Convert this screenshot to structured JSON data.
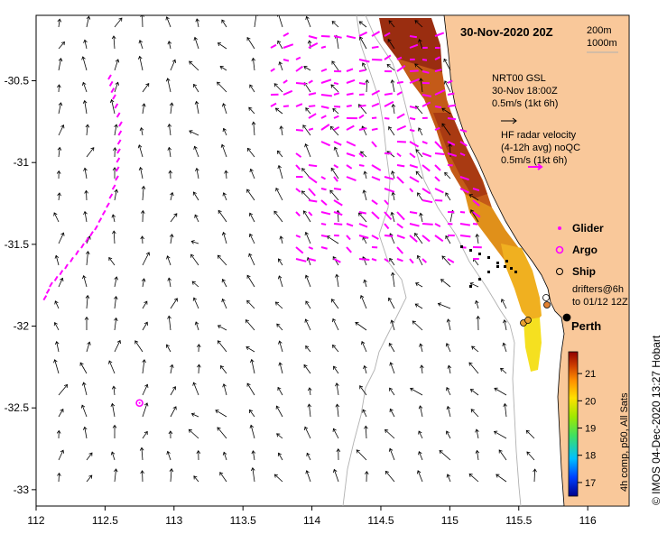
{
  "title": "30-Nov-2020 20Z",
  "contours": {
    "label_1": "200m",
    "label_2": "1000m"
  },
  "gsl_legend": {
    "line1": "NRT00 GSL",
    "line2": "30-Nov 18:00Z",
    "line3": "0.5m/s (1kt 6h)"
  },
  "hf_legend": {
    "line1": "HF radar velocity",
    "line2": "(4-12h avg) noQC",
    "line3": "0.5m/s (1kt 6h)"
  },
  "legend_items": {
    "glider": "Glider",
    "argo": "Argo",
    "ship": "Ship",
    "drifters_1": "drifters@6h",
    "drifters_2": "to 01/12 12Z"
  },
  "city": "Perth",
  "colorbar": {
    "label": "4h comp, p50, All Sats",
    "ticks": [
      "17",
      "18",
      "19",
      "20",
      "21"
    ],
    "min": 16.5,
    "max": 21.8
  },
  "credit": "© IMOS 04-Dec-2020 13:27 Hobart",
  "axes": {
    "x_ticks": [
      "112",
      "112.5",
      "113",
      "113.5",
      "114",
      "114.5",
      "115",
      "115.5",
      "116"
    ],
    "y_ticks": [
      "-30.5",
      "-31",
      "-31.5",
      "-32",
      "-32.5",
      "-33"
    ],
    "xlim": [
      112,
      116.3
    ],
    "ylim": [
      -33.1,
      -30.1
    ]
  },
  "colors": {
    "land": "#f9c89a",
    "arrow_hf": "#ff00ff",
    "arrow_gsl": "#000000"
  },
  "argo_position": {
    "lon": 112.75,
    "lat": -32.47
  }
}
